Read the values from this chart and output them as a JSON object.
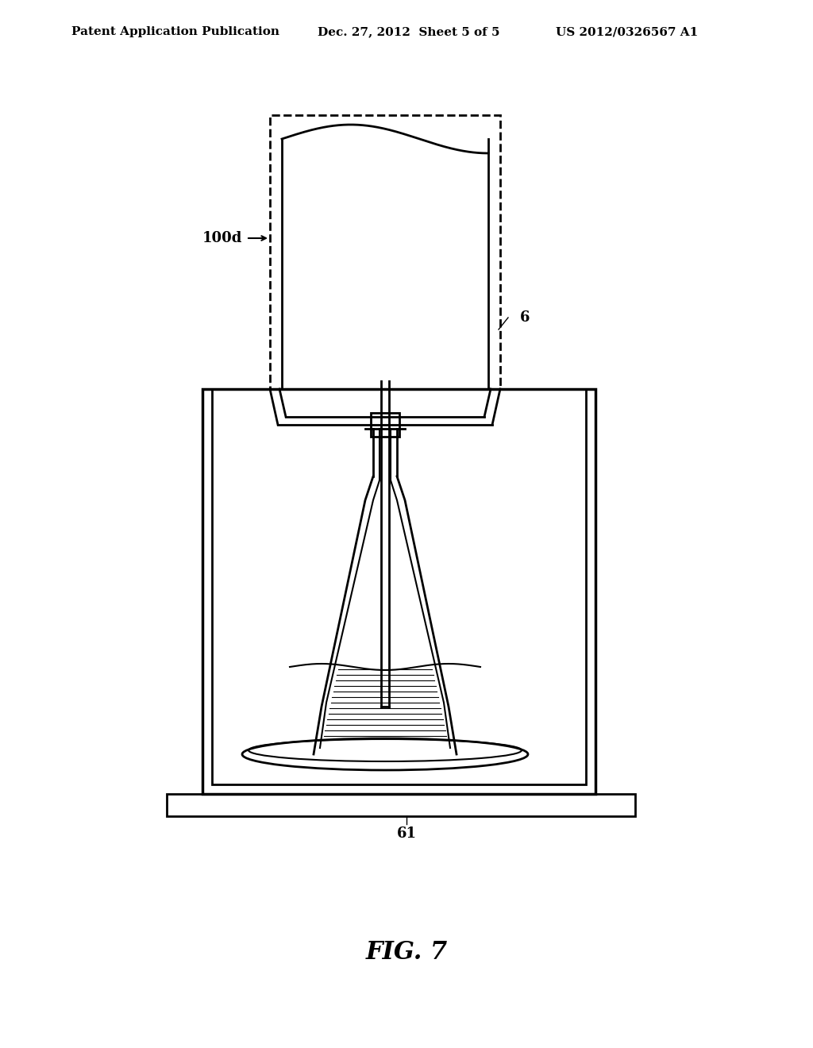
{
  "title": "",
  "header_left": "Patent Application Publication",
  "header_mid": "Dec. 27, 2012  Sheet 5 of 5",
  "header_right": "US 2012/0326567 A1",
  "fig_label": "FIG. 7",
  "label_100d": "100d",
  "label_6": "6",
  "label_61": "61",
  "bg_color": "#ffffff",
  "line_color": "#000000",
  "line_width": 1.5,
  "dashed_color": "#000000"
}
